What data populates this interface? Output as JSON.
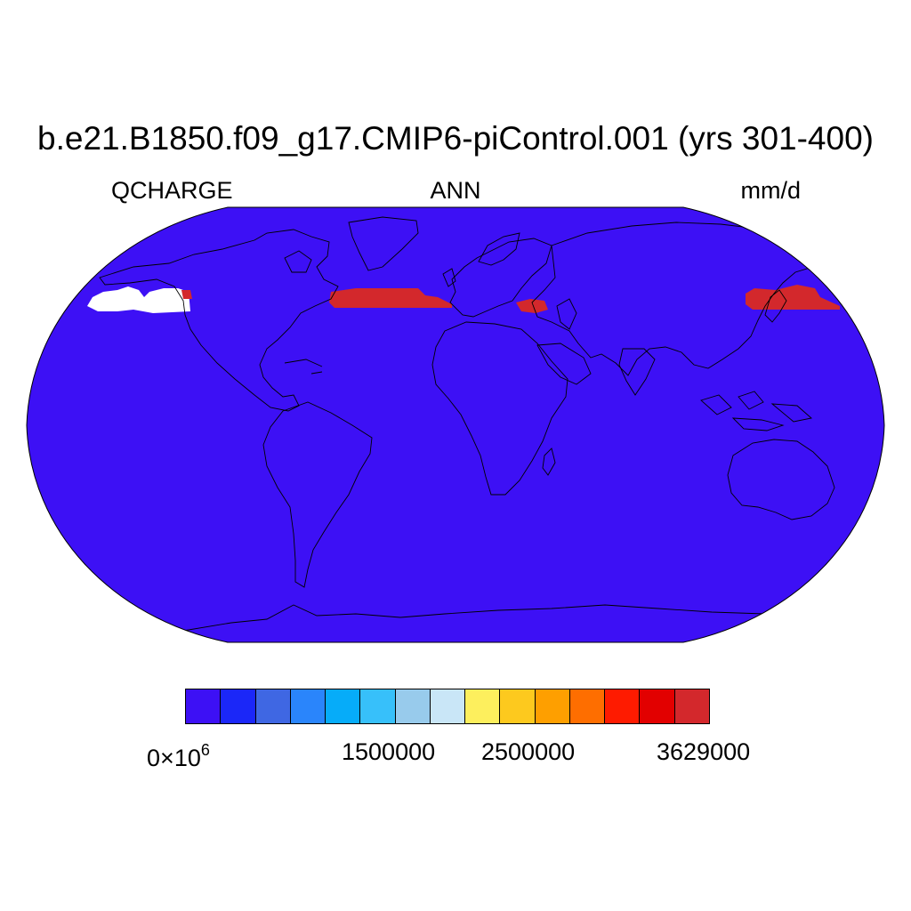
{
  "title": "b.e21.B1850.f09_g17.CMIP6-piControl.001 (yrs 301-400)",
  "left_label": "QCHARGE",
  "center_label": "ANN",
  "right_label": "mm/d",
  "map": {
    "projection": "Robinson",
    "background_color": "#3d10f5",
    "coastline_color": "#000000",
    "missing_color": "#ffffff",
    "high_value_color": "#d3282c"
  },
  "colorbar": {
    "colors": [
      "#3d10f5",
      "#1b27f8",
      "#3f67e3",
      "#2a85fb",
      "#06acf9",
      "#37c0fa",
      "#98cbec",
      "#c9e6f7",
      "#fdef5d",
      "#fdc91e",
      "#fe9f00",
      "#fe6e00",
      "#fe1b00",
      "#e20000",
      "#d3282c"
    ],
    "tick_labels": {
      "start_mantissa": "0",
      "start_times": "×",
      "start_base": "10",
      "start_exp": "6",
      "t1": "1500000",
      "t2": "2500000",
      "t3": "3629000"
    }
  }
}
